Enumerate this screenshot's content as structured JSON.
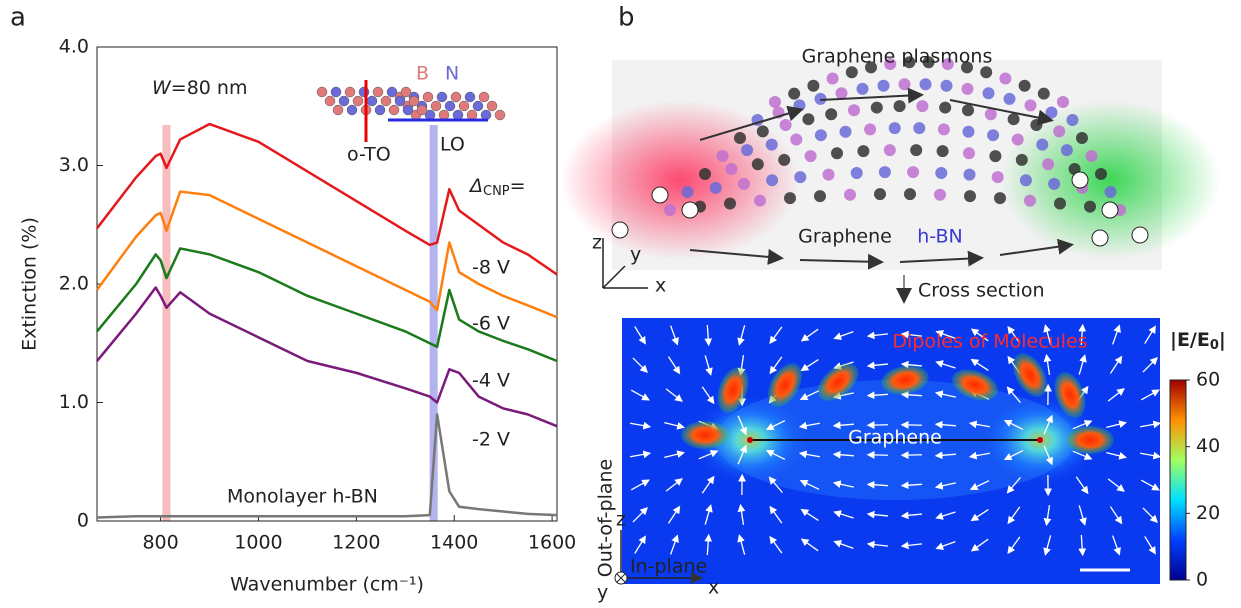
{
  "chart_data": {
    "type": "line",
    "panel_label": "a",
    "xlabel": "Wavenumber (cm⁻¹)",
    "ylabel": "Extinction (%)",
    "xlim": [
      670,
      1610
    ],
    "ylim": [
      0,
      4
    ],
    "xticks": [
      800,
      1000,
      1200,
      1400,
      1600
    ],
    "yticks": [
      0,
      {
        "value": 1,
        "label": "1.0"
      },
      {
        "value": 2,
        "label": "2.0"
      },
      {
        "value": 3,
        "label": "3.0"
      },
      {
        "value": 4,
        "label": "4.0"
      }
    ],
    "x": [
      670,
      750,
      790,
      800,
      812,
      840,
      900,
      1000,
      1100,
      1200,
      1300,
      1350,
      1365,
      1390,
      1410,
      1450,
      1500,
      1550,
      1610
    ],
    "series": [
      {
        "name": "-8 V",
        "color": "#e4191c",
        "values": [
          2.47,
          2.9,
          3.08,
          3.1,
          2.98,
          3.22,
          3.35,
          3.2,
          2.95,
          2.7,
          2.45,
          2.33,
          2.35,
          2.8,
          2.62,
          2.5,
          2.35,
          2.25,
          2.08
        ]
      },
      {
        "name": "-6 V",
        "color": "#ff7f0e",
        "values": [
          1.95,
          2.4,
          2.58,
          2.6,
          2.45,
          2.78,
          2.75,
          2.55,
          2.35,
          2.15,
          1.95,
          1.85,
          1.78,
          2.35,
          2.1,
          2.0,
          1.9,
          1.82,
          1.72
        ]
      },
      {
        "name": "-4 V",
        "color": "#1b7a1b",
        "values": [
          1.6,
          2.0,
          2.25,
          2.2,
          2.05,
          2.3,
          2.25,
          2.1,
          1.9,
          1.75,
          1.6,
          1.5,
          1.47,
          1.95,
          1.7,
          1.6,
          1.52,
          1.45,
          1.35
        ]
      },
      {
        "name": "-2 V",
        "color": "#7a1a7a",
        "values": [
          1.35,
          1.75,
          1.97,
          1.9,
          1.8,
          1.93,
          1.75,
          1.55,
          1.35,
          1.25,
          1.12,
          1.05,
          1.0,
          1.28,
          1.25,
          1.05,
          0.95,
          0.9,
          0.8
        ]
      },
      {
        "name": "Monolayer h-BN",
        "color": "#777777",
        "values": [
          0.03,
          0.04,
          0.04,
          0.04,
          0.04,
          0.04,
          0.04,
          0.04,
          0.04,
          0.04,
          0.04,
          0.05,
          0.9,
          0.25,
          0.12,
          0.1,
          0.08,
          0.06,
          0.05
        ]
      }
    ],
    "highlights": [
      {
        "x": 812,
        "color": "#f4a6a6"
      },
      {
        "x": 1358,
        "color": "#9a9ae8"
      }
    ],
    "annotations": {
      "width_symbol": "W",
      "width_value": "=80 nm",
      "boron": "B",
      "nitrogen": "N",
      "oto": "o-TO",
      "lo": "LO",
      "delta": "Δ",
      "delta_sub": "CNP",
      "delta_eq": "="
    }
  },
  "panel_b": {
    "label": "b",
    "plasmons": "Graphene plasmons",
    "graphene": "Graphene",
    "hbn": "h-BN",
    "axis_z": "z",
    "axis_y": "y",
    "axis_x": "x",
    "cross_section": "Cross section",
    "dipoles": "Dipoles of Molecules",
    "field_pre": "|E/E",
    "field_sub": "0",
    "field_post": "|",
    "colorbar": {
      "lim": [
        0,
        60
      ],
      "ticks": [
        0,
        20,
        40,
        60
      ]
    },
    "map_graphene": "Graphene",
    "out_of_plane": "Out-of-plane",
    "in_plane": "In-plane",
    "map_z": "z",
    "map_x": "x",
    "map_y": "y"
  }
}
